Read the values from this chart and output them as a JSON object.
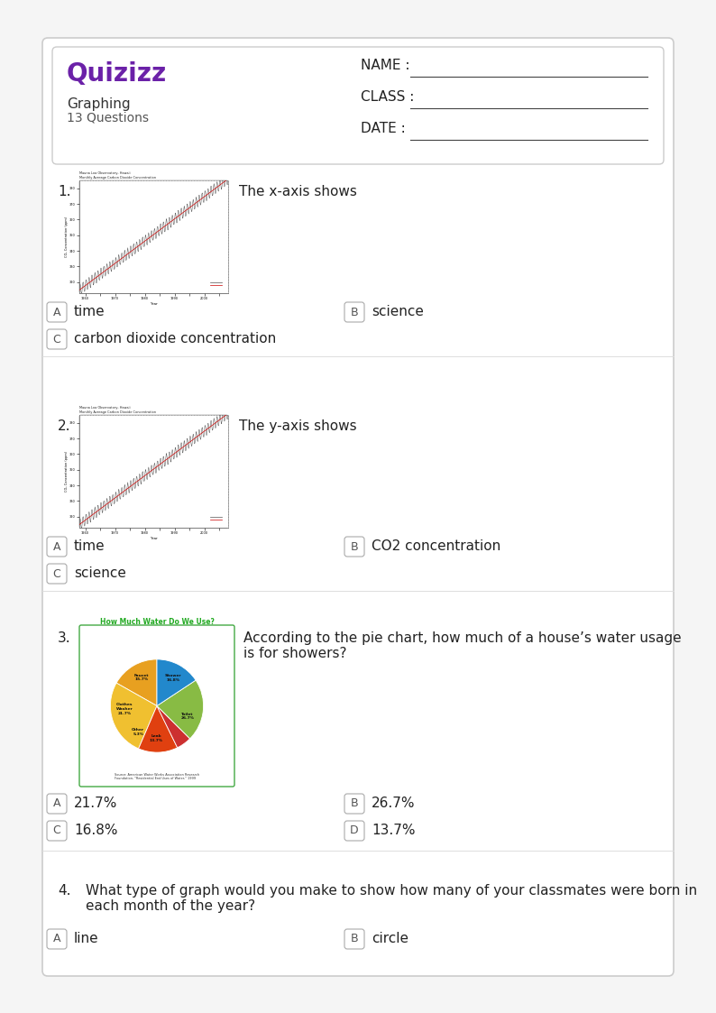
{
  "title": "Graphing",
  "subtitle": "13 Questions",
  "logo_color": "#6b21a8",
  "header_fields": [
    "NAME :",
    "CLASS :",
    "DATE :"
  ],
  "bg_color": "#f5f5f5",
  "text_color": "#222222",
  "questions": [
    {
      "num": "1.",
      "question": "The x-axis shows",
      "answers_row1": [
        {
          "label": "A",
          "text": "time"
        },
        {
          "label": "B",
          "text": "science"
        }
      ],
      "answers_row2": [
        {
          "label": "C",
          "text": "carbon dioxide concentration"
        }
      ],
      "has_graph": true,
      "graph_type": "co2"
    },
    {
      "num": "2.",
      "question": "The y-axis shows",
      "answers_row1": [
        {
          "label": "A",
          "text": "time"
        },
        {
          "label": "B",
          "text": "CO2 concentration"
        }
      ],
      "answers_row2": [
        {
          "label": "C",
          "text": "science"
        }
      ],
      "has_graph": true,
      "graph_type": "co2"
    },
    {
      "num": "3.",
      "question": "According to the pie chart, how much of a house’s water usage\nis for showers?",
      "answers_row1": [
        {
          "label": "A",
          "text": "21.7%"
        },
        {
          "label": "B",
          "text": "26.7%"
        }
      ],
      "answers_row2": [
        {
          "label": "C",
          "text": "16.8%"
        },
        {
          "label": "D",
          "text": "13.7%"
        }
      ],
      "has_graph": true,
      "graph_type": "pie"
    },
    {
      "num": "4.",
      "question": "What type of graph would you make to show how many of your classmates were born in\neach month of the year?",
      "answers_row1": [
        {
          "label": "A",
          "text": "line"
        },
        {
          "label": "B",
          "text": "circle"
        }
      ],
      "answers_row2": [],
      "has_graph": false,
      "graph_type": null
    }
  ],
  "pie_data": {
    "labels": [
      "Shower\n16.8%",
      "Toilet\n26.7%",
      "Leak\n13.7%",
      "Other\n5.3%",
      "Clothes\nWasher\n21.7%",
      "Faucet\n15.7%"
    ],
    "sizes": [
      16.8,
      26.7,
      13.7,
      5.3,
      21.7,
      15.7
    ],
    "colors": [
      "#e8a020",
      "#f0c030",
      "#e04010",
      "#cc3030",
      "#88bb44",
      "#2288cc"
    ],
    "title": "How Much Water Do We Use?",
    "title_color": "#22aa22",
    "source": "Source: American Water Works Association Research\nFoundation, \"Residential End Uses of Water,\" 1999"
  }
}
